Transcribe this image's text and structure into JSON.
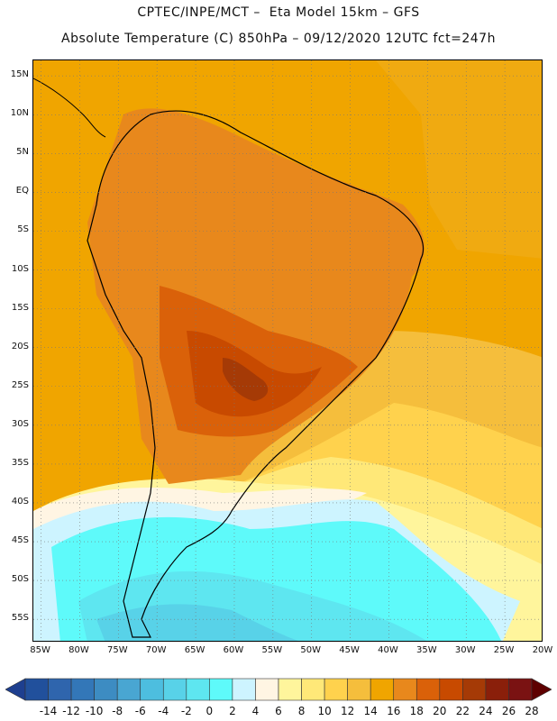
{
  "header": {
    "line1": "CPTEC/INPE/MCT –  Eta Model 15km – GFS",
    "line2": "Absolute Temperature (C) 850hPa – 09/12/2020 12UTC fct=247h"
  },
  "map": {
    "lat_labels": [
      "15N",
      "10N",
      "5N",
      "EQ",
      "5S",
      "10S",
      "15S",
      "20S",
      "25S",
      "30S",
      "35S",
      "40S",
      "45S",
      "50S",
      "55S"
    ],
    "lon_labels": [
      "85W",
      "80W",
      "75W",
      "70W",
      "65W",
      "60W",
      "55W",
      "50W",
      "45W",
      "40W",
      "35W",
      "30W",
      "25W",
      "20W"
    ],
    "lat_range": [
      -58,
      17
    ],
    "lon_range": [
      -86,
      -20
    ],
    "background_color": "#f0a500"
  },
  "colorbar": {
    "labels": [
      "-14",
      "-12",
      "-10",
      "-8",
      "-6",
      "-4",
      "-2",
      "0",
      "2",
      "4",
      "6",
      "8",
      "10",
      "12",
      "14",
      "16",
      "18",
      "20",
      "22",
      "24",
      "26",
      "28"
    ],
    "colors": [
      "#1e3f8f",
      "#21509c",
      "#2f65ad",
      "#3377b8",
      "#3d8cc2",
      "#49a6d2",
      "#4dbedf",
      "#58d2e8",
      "#5ee6f0",
      "#5efafa",
      "#cdf4ff",
      "#fff5e3",
      "#fff59c",
      "#ffe878",
      "#ffd24d",
      "#f5be3c",
      "#f0a500",
      "#e8881c",
      "#da6109",
      "#c84a00",
      "#a53a06",
      "#8a1f0a",
      "#7a1212",
      "#5e0000"
    ]
  }
}
